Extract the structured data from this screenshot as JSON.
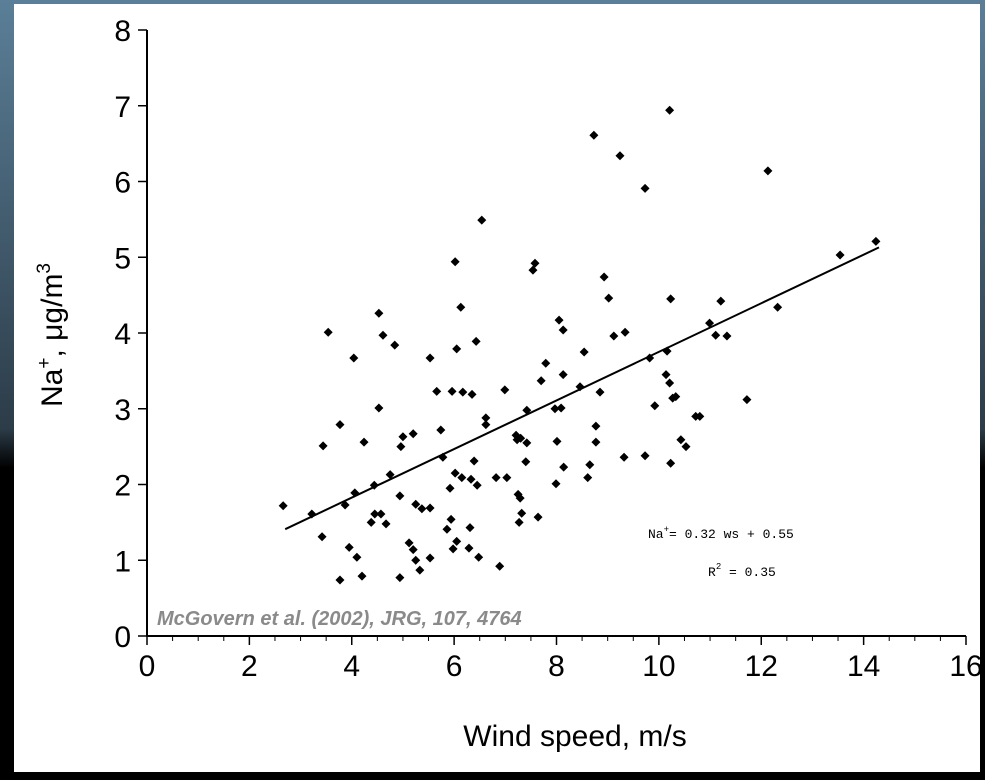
{
  "chart_data": {
    "type": "scatter",
    "x_label": "Wind speed, m/s",
    "y_label": [
      "Na",
      "+",
      ", μg/m",
      "3"
    ],
    "equation": [
      "Na",
      "+",
      "= 0.32 ws + 0.55"
    ],
    "r_squared": [
      "R",
      "2",
      " = 0.35"
    ],
    "citation": "McGovern et al. (2002), JRG, 107, 4764",
    "xlim": [
      0,
      16
    ],
    "xticks": [
      0,
      2,
      4,
      6,
      8,
      10,
      12,
      14,
      16
    ],
    "ylim": [
      0,
      8
    ],
    "yticks": [
      0,
      1,
      2,
      3,
      4,
      5,
      6,
      7,
      8
    ],
    "color": "#000000",
    "trend": {
      "x": [
        2.7,
        14.3
      ],
      "y": [
        1.41,
        5.13
      ]
    },
    "x": [
      2.66,
      3.22,
      3.44,
      3.42,
      3.54,
      3.77,
      3.77,
      3.87,
      3.95,
      4.04,
      4.06,
      4.1,
      4.2,
      4.24,
      4.38,
      4.44,
      4.45,
      4.53,
      4.53,
      4.57,
      4.61,
      4.67,
      4.75,
      4.84,
      4.94,
      4.96,
      4.94,
      5.0,
      5.12,
      5.2,
      5.2,
      5.25,
      5.25,
      5.33,
      5.37,
      5.53,
      5.53,
      5.53,
      5.66,
      5.74,
      5.78,
      5.86,
      5.92,
      5.94,
      5.96,
      5.98,
      6.02,
      6.02,
      6.05,
      6.05,
      6.13,
      6.15,
      6.17,
      6.29,
      6.31,
      6.33,
      6.35,
      6.39,
      6.43,
      6.45,
      6.48,
      6.54,
      6.62,
      6.62,
      6.82,
      6.89,
      6.99,
      7.03,
      7.21,
      7.23,
      7.25,
      7.27,
      7.29,
      7.3,
      7.32,
      7.4,
      7.42,
      7.42,
      7.54,
      7.58,
      7.64,
      7.7,
      7.79,
      7.97,
      7.99,
      8.01,
      8.05,
      8.09,
      8.13,
      8.13,
      8.14,
      8.46,
      8.54,
      8.61,
      8.65,
      8.73,
      8.77,
      8.77,
      8.85,
      8.93,
      9.02,
      9.12,
      9.24,
      9.32,
      9.34,
      9.73,
      9.73,
      9.82,
      9.92,
      10.14,
      10.16,
      10.21,
      10.21,
      10.23,
      10.23,
      10.27,
      10.33,
      10.43,
      10.53,
      10.72,
      10.8,
      10.99,
      11.11,
      11.21,
      11.33,
      11.72,
      12.13,
      12.32,
      13.54,
      14.24
    ],
    "values": [
      1.72,
      1.61,
      2.51,
      1.31,
      4.01,
      2.79,
      0.74,
      1.73,
      1.17,
      3.67,
      1.89,
      1.04,
      0.79,
      2.56,
      1.5,
      1.99,
      1.61,
      4.26,
      3.01,
      1.61,
      3.97,
      1.48,
      2.13,
      3.84,
      1.85,
      2.5,
      0.77,
      2.63,
      1.23,
      1.14,
      2.67,
      1.0,
      1.74,
      0.87,
      1.68,
      1.03,
      3.67,
      1.69,
      3.23,
      2.72,
      2.36,
      1.41,
      1.95,
      1.54,
      3.23,
      1.15,
      2.15,
      4.94,
      3.79,
      1.25,
      4.34,
      2.09,
      3.22,
      1.16,
      1.43,
      2.07,
      3.19,
      2.31,
      3.89,
      1.99,
      1.04,
      5.49,
      2.79,
      2.88,
      2.09,
      0.92,
      3.25,
      2.09,
      2.65,
      2.59,
      1.87,
      1.5,
      1.82,
      2.61,
      1.62,
      2.3,
      2.98,
      2.55,
      4.83,
      4.92,
      1.57,
      3.37,
      3.6,
      3.0,
      2.01,
      2.57,
      4.17,
      3.01,
      3.45,
      4.04,
      2.23,
      3.29,
      3.75,
      2.09,
      2.26,
      6.61,
      2.77,
      2.56,
      3.22,
      4.74,
      4.46,
      3.96,
      6.34,
      2.36,
      4.01,
      5.91,
      2.38,
      3.67,
      3.04,
      3.45,
      3.76,
      6.94,
      3.34,
      4.45,
      2.28,
      3.14,
      3.16,
      2.59,
      2.5,
      2.9,
      2.9,
      4.13,
      3.97,
      4.42,
      3.96,
      3.12,
      6.14,
      4.34,
      5.03,
      5.21
    ]
  }
}
